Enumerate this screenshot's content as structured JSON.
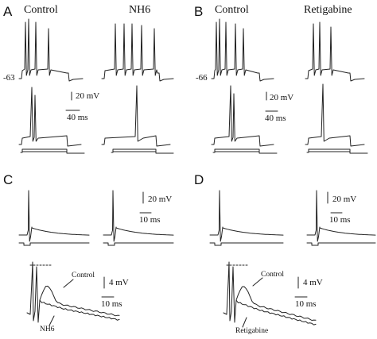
{
  "panels": {
    "A": {
      "letter": "A",
      "condition_left": "Control",
      "condition_right": "NH6",
      "resting_potential": "-63",
      "scale_voltage": "20 mV",
      "scale_time": "40 ms"
    },
    "B": {
      "letter": "B",
      "condition_left": "Control",
      "condition_right": "Retigabine",
      "resting_potential": "-66",
      "scale_voltage": "20 mV",
      "scale_time": "40 ms"
    },
    "C": {
      "letter": "C",
      "scale_voltage": "20 mV",
      "scale_time": "10 ms",
      "inset_scale_voltage": "4 mV",
      "inset_scale_time": "10 ms",
      "inset_label_control": "Control",
      "inset_label_drug": "NH6"
    },
    "D": {
      "letter": "D",
      "scale_voltage": "20 mV",
      "scale_time": "10 ms",
      "inset_scale_voltage": "4 mV",
      "inset_scale_time": "10 ms",
      "inset_label_control": "Control",
      "inset_label_drug": "Retigabine"
    }
  },
  "colors": {
    "trace": "#222222",
    "background": "#ffffff"
  }
}
